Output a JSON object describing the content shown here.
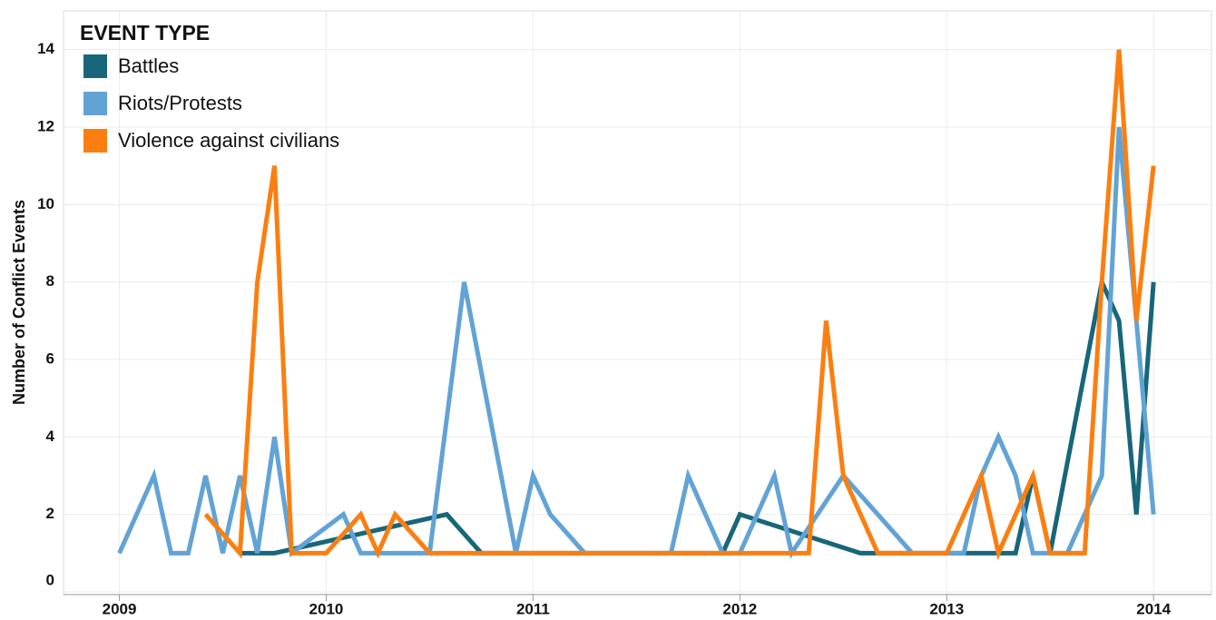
{
  "chart_data": {
    "type": "line",
    "y_label": "Number of Conflict Events",
    "legend_title": "EVENT TYPE",
    "legend": "top-left",
    "grid": true,
    "xlim": [
      2008.73,
      2014.28
    ],
    "xticks": [
      2009,
      2010,
      2011,
      2012,
      2013,
      2014
    ],
    "ylim": [
      0,
      15
    ],
    "yticks": [
      0,
      2,
      4,
      6,
      8,
      10,
      12,
      14
    ],
    "series": [
      {
        "name": "Battles",
        "color": "#17667a",
        "x": [
          2009.583,
          2009.75,
          2010.583,
          2010.75,
          2011.917,
          2012,
          2012.583,
          2013.333,
          2013.417,
          2013.5,
          2013.75,
          2013.833,
          2013.917,
          2014
        ],
        "values": [
          1,
          1,
          2,
          1,
          1,
          2,
          1,
          1,
          3,
          1,
          8,
          7,
          2,
          8
        ]
      },
      {
        "name": "Riots/Protests",
        "color": "#62a3d6",
        "x": [
          2009,
          2009.167,
          2009.25,
          2009.333,
          2009.417,
          2009.5,
          2009.583,
          2009.667,
          2009.75,
          2009.833,
          2010.083,
          2010.167,
          2010.5,
          2010.667,
          2010.917,
          2011,
          2011.083,
          2011.25,
          2011.667,
          2011.75,
          2011.917,
          2012,
          2012.167,
          2012.25,
          2012.5,
          2012.833,
          2013.083,
          2013.167,
          2013.25,
          2013.333,
          2013.417,
          2013.583,
          2013.75,
          2013.833,
          2013.917,
          2014
        ],
        "values": [
          1,
          3,
          1,
          1,
          3,
          1,
          3,
          1,
          4,
          1,
          2,
          1,
          1,
          8,
          1,
          3,
          2,
          1,
          1,
          3,
          1,
          1,
          3,
          1,
          3,
          1,
          1,
          3,
          4,
          3,
          1,
          1,
          3,
          12,
          7,
          2
        ]
      },
      {
        "name": "Violence against civilians",
        "color": "#fb7f10",
        "x": [
          2009.417,
          2009.583,
          2009.667,
          2009.75,
          2009.833,
          2010,
          2010.167,
          2010.25,
          2010.333,
          2010.5,
          2012.333,
          2012.417,
          2012.5,
          2012.667,
          2013,
          2013.167,
          2013.25,
          2013.417,
          2013.5,
          2013.667,
          2013.75,
          2013.833,
          2013.917,
          2014
        ],
        "values": [
          2,
          1,
          8,
          11,
          1,
          1,
          2,
          1,
          2,
          1,
          1,
          7,
          3,
          1,
          1,
          3,
          1,
          3,
          1,
          1,
          8,
          14,
          7,
          11
        ]
      }
    ]
  }
}
